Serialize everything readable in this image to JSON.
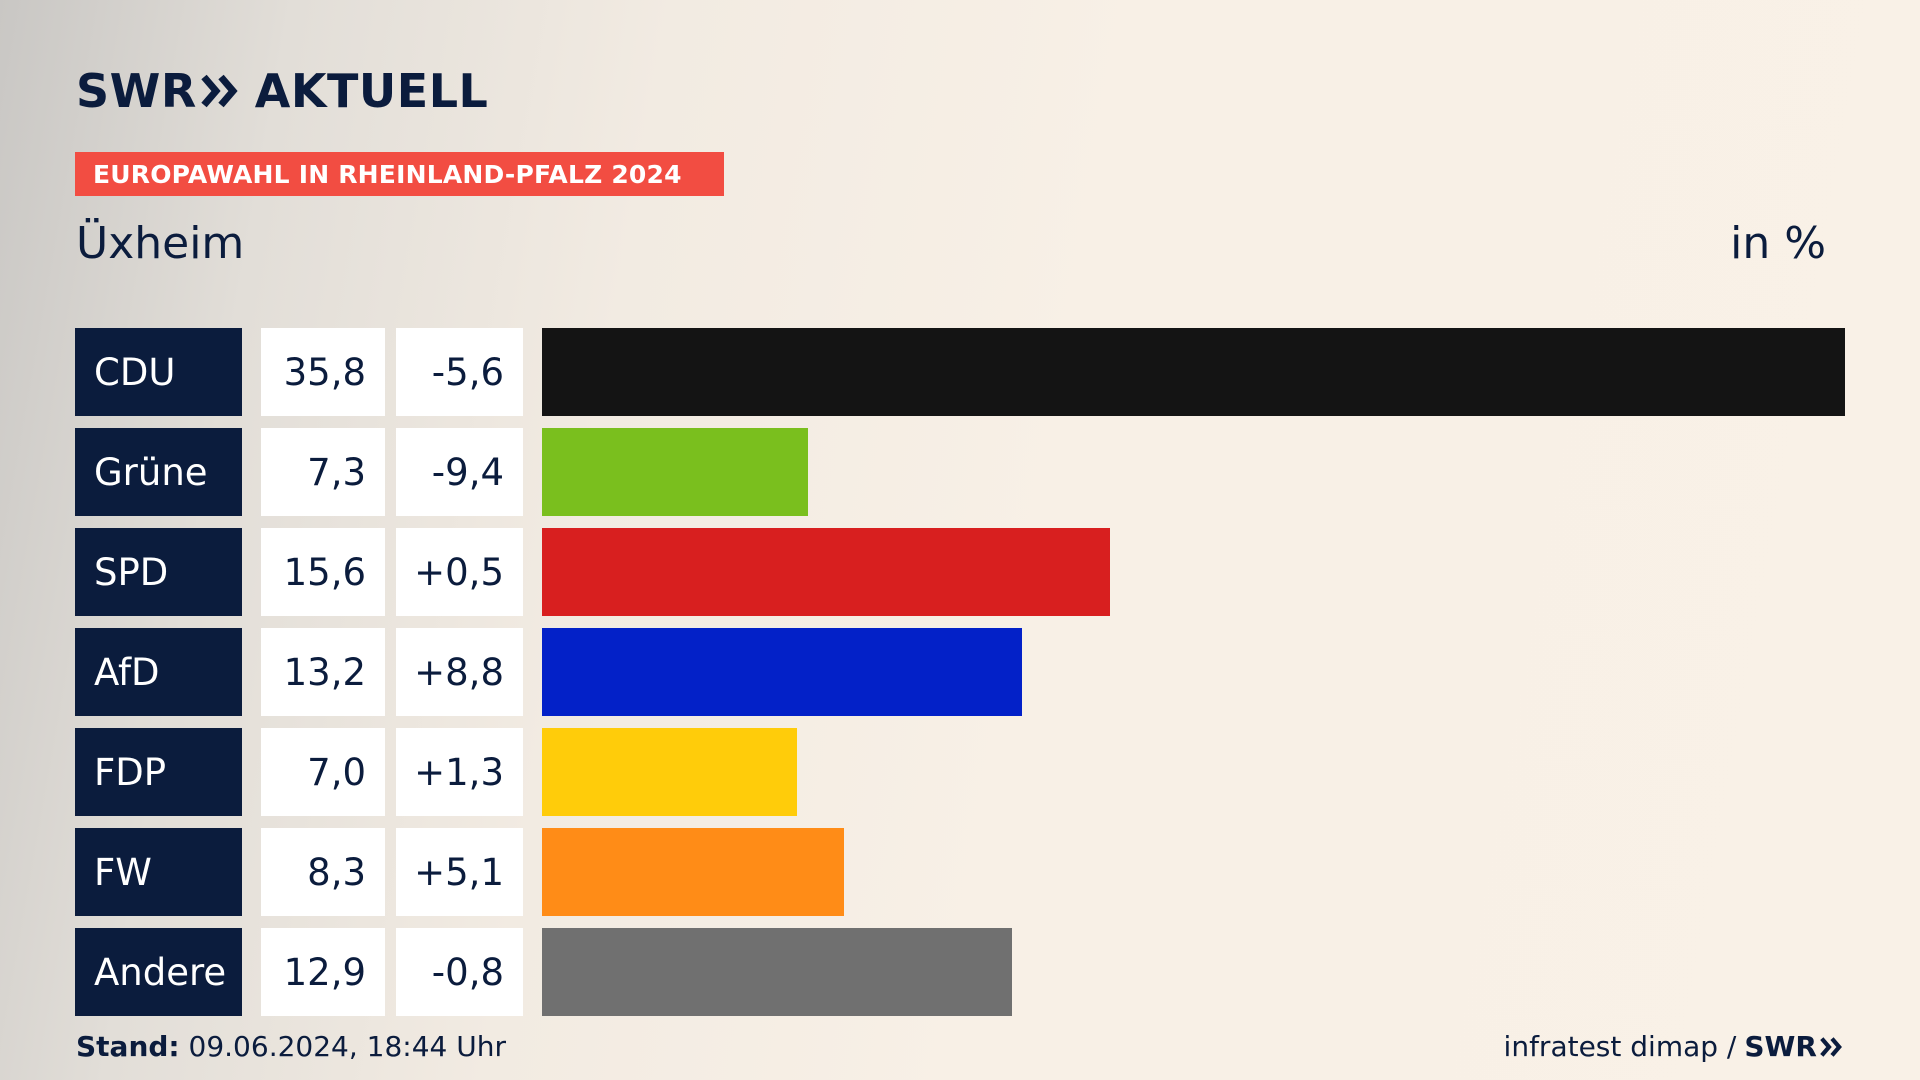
{
  "header": {
    "brand": "SWR",
    "brand_suffix": "AKTUELL",
    "banner": "EUROPAWAHL IN RHEINLAND-PFALZ 2024",
    "place": "Üxheim",
    "unit": "in %"
  },
  "footer": {
    "stand_label": "Stand:",
    "stand_value": "09.06.2024, 18:44 Uhr",
    "source": "infratest dimap /",
    "source_brand": "SWR"
  },
  "chart_data": {
    "type": "bar",
    "orientation": "horizontal",
    "categories": [
      "CDU",
      "Grüne",
      "SPD",
      "AfD",
      "FDP",
      "FW",
      "Andere"
    ],
    "values": [
      35.8,
      7.3,
      15.6,
      13.2,
      7.0,
      8.3,
      12.9
    ],
    "value_labels": [
      "35,8",
      "7,3",
      "15,6",
      "13,2",
      "7,0",
      "8,3",
      "12,9"
    ],
    "diff_labels": [
      "-5,6",
      "-9,4",
      "+0,5",
      "+8,8",
      "+1,3",
      "+5,1",
      "-0,8"
    ],
    "colors": [
      "#141414",
      "#7abf1e",
      "#d81f1f",
      "#0321c8",
      "#ffcc0a",
      "#ff8c17",
      "#707070"
    ],
    "xlim": [
      0,
      35.8
    ],
    "grid": false,
    "legend": "none"
  }
}
